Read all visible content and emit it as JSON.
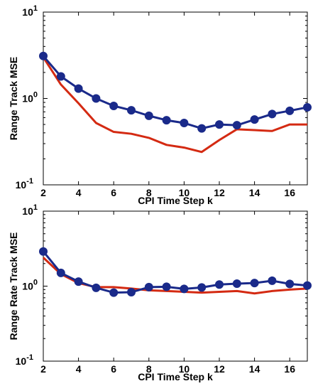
{
  "chart_data": [
    {
      "type": "line",
      "xlabel": "CPI Time Step k",
      "ylabel": "Range Track MSE",
      "xlim": [
        2,
        17
      ],
      "ylim": [
        0.1,
        10
      ],
      "yscale": "log",
      "grid": false,
      "xticks": [
        "2",
        "4",
        "6",
        "8",
        "10",
        "12",
        "14",
        "16"
      ],
      "yticks": [
        {
          "base": "10",
          "exp": "-1"
        },
        {
          "base": "10",
          "exp": "0"
        },
        {
          "base": "10",
          "exp": "1"
        }
      ],
      "x": [
        2,
        3,
        4,
        5,
        6,
        7,
        8,
        9,
        10,
        11,
        12,
        13,
        14,
        15,
        16,
        17
      ],
      "series": [
        {
          "color": "#1a2a8a",
          "marker": "circle",
          "values": [
            3.1,
            1.8,
            1.3,
            1.0,
            0.82,
            0.73,
            0.63,
            0.56,
            0.52,
            0.45,
            0.5,
            0.49,
            0.57,
            0.66,
            0.72,
            0.79
          ]
        },
        {
          "color": "#d42a12",
          "marker": "none",
          "values": [
            3.0,
            1.45,
            0.88,
            0.52,
            0.41,
            0.39,
            0.35,
            0.29,
            0.27,
            0.24,
            0.33,
            0.44,
            0.43,
            0.42,
            0.5,
            0.5
          ]
        }
      ]
    },
    {
      "type": "line",
      "xlabel": "CPI Time Step k",
      "ylabel": "Range Rate Track MSE",
      "xlim": [
        2,
        17
      ],
      "ylim": [
        0.1,
        10
      ],
      "yscale": "log",
      "grid": false,
      "xticks": [
        "2",
        "4",
        "6",
        "8",
        "10",
        "12",
        "14",
        "16"
      ],
      "yticks": [
        {
          "base": "10",
          "exp": "-1"
        },
        {
          "base": "10",
          "exp": "0"
        },
        {
          "base": "10",
          "exp": "1"
        }
      ],
      "x": [
        2,
        3,
        4,
        5,
        6,
        7,
        8,
        9,
        10,
        11,
        12,
        13,
        14,
        15,
        16,
        17
      ],
      "series": [
        {
          "color": "#1a2a8a",
          "marker": "circle",
          "values": [
            2.9,
            1.5,
            1.15,
            0.95,
            0.82,
            0.83,
            0.97,
            0.98,
            0.92,
            0.96,
            1.05,
            1.08,
            1.1,
            1.18,
            1.07,
            1.02
          ]
        },
        {
          "color": "#d42a12",
          "marker": "none",
          "values": [
            2.4,
            1.45,
            1.1,
            0.97,
            0.97,
            0.93,
            0.88,
            0.86,
            0.84,
            0.82,
            0.84,
            0.86,
            0.8,
            0.86,
            0.9,
            0.93
          ]
        }
      ]
    }
  ]
}
